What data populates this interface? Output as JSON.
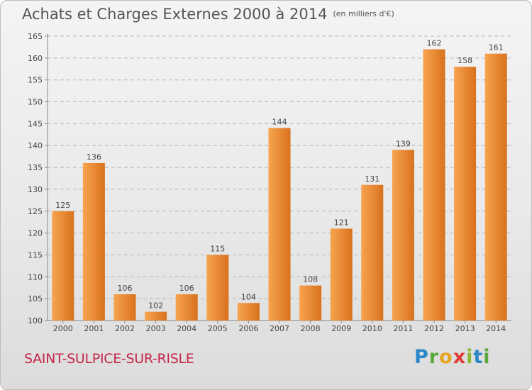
{
  "header": {
    "title": "Achats et Charges Externes 2000 à 2014",
    "unit": "(en milliers d'€)"
  },
  "footer": {
    "location": "SAINT-SULPICE-SUR-RISLE",
    "brand_letters": [
      "P",
      "r",
      "o",
      "x",
      "i",
      "t",
      "i"
    ],
    "brand_colors": [
      "#2a87c8",
      "#5aa93c",
      "#e8a31f",
      "#e23b35",
      "#8ab934",
      "#2a87c8",
      "#5aa93c"
    ]
  },
  "colors": {
    "bar_light": "#f7a44f",
    "bar_dark": "#d9711d",
    "axis": "#888888",
    "grid": "#b5b5b5",
    "text": "#444444"
  },
  "chart_data": {
    "type": "bar",
    "categories": [
      "2000",
      "2001",
      "2002",
      "2003",
      "2004",
      "2005",
      "2006",
      "2007",
      "2008",
      "2009",
      "2010",
      "2011",
      "2012",
      "2013",
      "2014"
    ],
    "values": [
      125,
      136,
      106,
      102,
      106,
      115,
      104,
      144,
      108,
      121,
      131,
      139,
      162,
      158,
      161
    ],
    "ylim": [
      100,
      165
    ],
    "yticks": [
      100,
      105,
      110,
      115,
      120,
      125,
      130,
      135,
      140,
      145,
      150,
      155,
      160,
      165
    ],
    "grid": true,
    "title": "Achats et Charges Externes 2000 à 2014"
  }
}
